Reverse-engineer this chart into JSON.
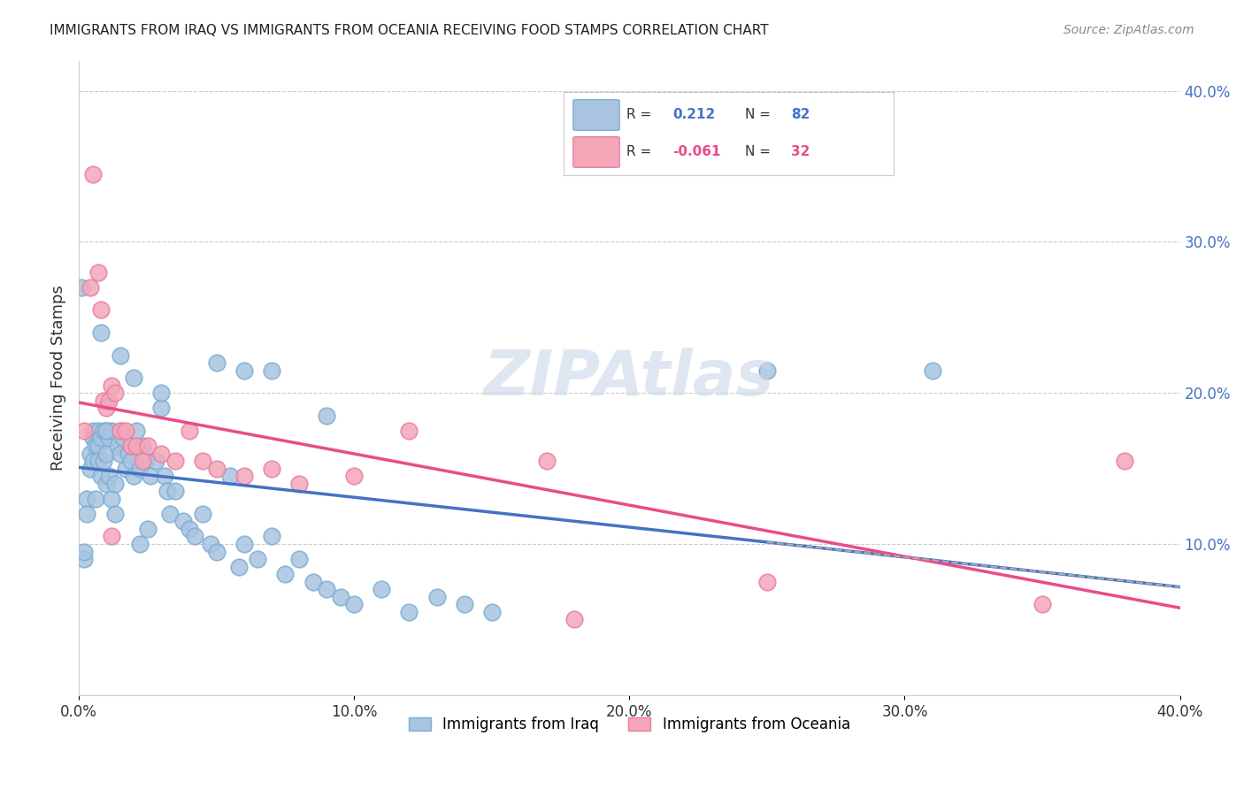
{
  "title": "IMMIGRANTS FROM IRAQ VS IMMIGRANTS FROM OCEANIA RECEIVING FOOD STAMPS CORRELATION CHART",
  "source": "Source: ZipAtlas.com",
  "xlabel": "",
  "ylabel": "Receiving Food Stamps",
  "xlim": [
    0.0,
    0.4
  ],
  "ylim": [
    0.0,
    0.42
  ],
  "xticks": [
    0.0,
    0.1,
    0.2,
    0.3,
    0.4
  ],
  "yticks_right": [
    0.0,
    0.1,
    0.2,
    0.3,
    0.4
  ],
  "xtick_labels": [
    "0.0%",
    "10.0%",
    "20.0%",
    "30.0%",
    "40.0%"
  ],
  "ytick_labels_right": [
    "",
    "10.0%",
    "20.0%",
    "30.0%",
    "40.0%"
  ],
  "iraq_color": "#a8c4e0",
  "oceania_color": "#f4a7b9",
  "iraq_edge_color": "#7bafd4",
  "oceania_edge_color": "#e87fa0",
  "iraq_line_color": "#4472c4",
  "oceania_line_color": "#e84c8b",
  "watermark_color": "#c8d8e8",
  "R_iraq": 0.212,
  "N_iraq": 82,
  "R_oceania": -0.061,
  "N_oceania": 32,
  "legend_label_iraq": "Immigrants from Iraq",
  "legend_label_oceania": "Immigrants from Oceania",
  "iraq_scatter_x": [
    0.001,
    0.002,
    0.003,
    0.003,
    0.004,
    0.004,
    0.005,
    0.005,
    0.005,
    0.006,
    0.006,
    0.007,
    0.007,
    0.007,
    0.008,
    0.008,
    0.009,
    0.009,
    0.01,
    0.01,
    0.01,
    0.011,
    0.011,
    0.012,
    0.012,
    0.013,
    0.013,
    0.014,
    0.015,
    0.015,
    0.016,
    0.017,
    0.018,
    0.019,
    0.02,
    0.021,
    0.022,
    0.022,
    0.023,
    0.024,
    0.025,
    0.026,
    0.028,
    0.03,
    0.031,
    0.032,
    0.033,
    0.035,
    0.038,
    0.04,
    0.042,
    0.045,
    0.048,
    0.05,
    0.055,
    0.058,
    0.06,
    0.065,
    0.07,
    0.075,
    0.08,
    0.085,
    0.09,
    0.095,
    0.1,
    0.11,
    0.12,
    0.13,
    0.14,
    0.15,
    0.002,
    0.008,
    0.01,
    0.015,
    0.02,
    0.03,
    0.05,
    0.06,
    0.07,
    0.09,
    0.25,
    0.31
  ],
  "iraq_scatter_y": [
    0.27,
    0.09,
    0.13,
    0.12,
    0.16,
    0.15,
    0.175,
    0.17,
    0.155,
    0.165,
    0.13,
    0.175,
    0.165,
    0.155,
    0.17,
    0.145,
    0.175,
    0.155,
    0.175,
    0.16,
    0.14,
    0.17,
    0.145,
    0.175,
    0.13,
    0.14,
    0.12,
    0.165,
    0.175,
    0.16,
    0.17,
    0.15,
    0.16,
    0.155,
    0.145,
    0.175,
    0.15,
    0.1,
    0.165,
    0.155,
    0.11,
    0.145,
    0.155,
    0.19,
    0.145,
    0.135,
    0.12,
    0.135,
    0.115,
    0.11,
    0.105,
    0.12,
    0.1,
    0.095,
    0.145,
    0.085,
    0.1,
    0.09,
    0.105,
    0.08,
    0.09,
    0.075,
    0.07,
    0.065,
    0.06,
    0.07,
    0.055,
    0.065,
    0.06,
    0.055,
    0.095,
    0.24,
    0.175,
    0.225,
    0.21,
    0.2,
    0.22,
    0.215,
    0.215,
    0.185,
    0.215,
    0.215
  ],
  "oceania_scatter_x": [
    0.002,
    0.004,
    0.005,
    0.007,
    0.008,
    0.009,
    0.01,
    0.011,
    0.012,
    0.013,
    0.015,
    0.017,
    0.019,
    0.021,
    0.023,
    0.025,
    0.03,
    0.035,
    0.04,
    0.045,
    0.05,
    0.06,
    0.07,
    0.08,
    0.1,
    0.12,
    0.17,
    0.35,
    0.38,
    0.012,
    0.18,
    0.25
  ],
  "oceania_scatter_y": [
    0.175,
    0.27,
    0.345,
    0.28,
    0.255,
    0.195,
    0.19,
    0.195,
    0.205,
    0.2,
    0.175,
    0.175,
    0.165,
    0.165,
    0.155,
    0.165,
    0.16,
    0.155,
    0.175,
    0.155,
    0.15,
    0.145,
    0.15,
    0.14,
    0.145,
    0.175,
    0.155,
    0.06,
    0.155,
    0.105,
    0.05,
    0.075
  ]
}
